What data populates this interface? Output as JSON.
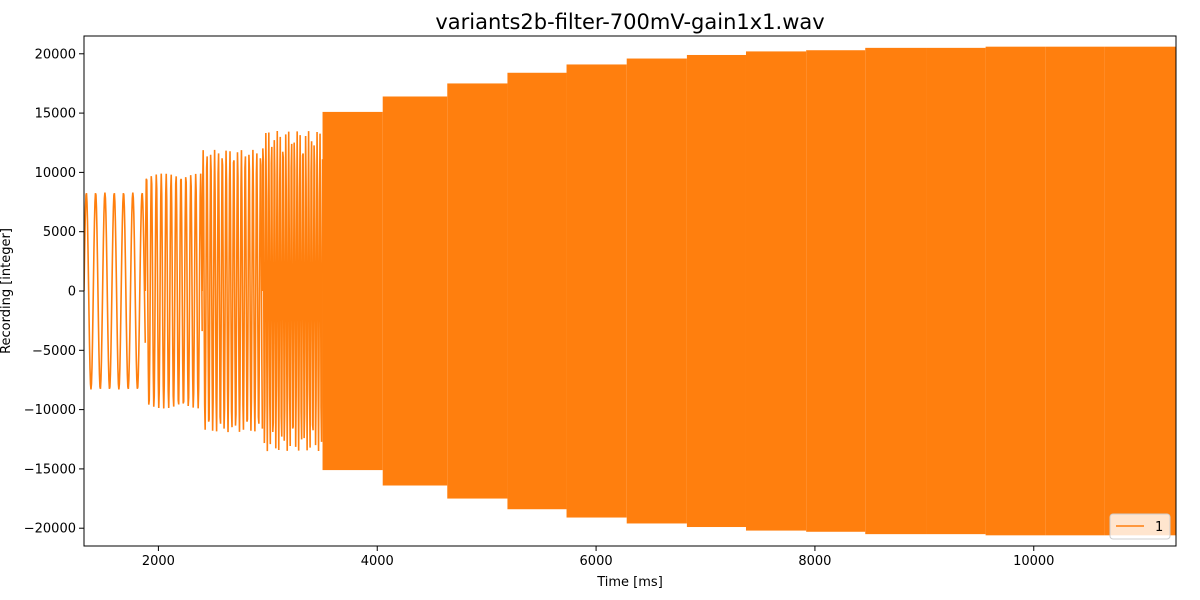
{
  "chart_data": {
    "type": "line",
    "title": "variants2b-filter-700mV-gain1x1.wav",
    "xlabel": "Time [ms]",
    "ylabel": "Recording [integer]",
    "xlim": [
      1320,
      11300
    ],
    "ylim": [
      -21500,
      21500
    ],
    "xticks": [
      2000,
      4000,
      6000,
      8000,
      10000
    ],
    "xtick_labels": [
      "2000",
      "4000",
      "6000",
      "8000",
      "10000"
    ],
    "yticks": [
      -20000,
      -15000,
      -10000,
      -5000,
      0,
      5000,
      10000,
      15000,
      20000
    ],
    "ytick_labels": [
      "−20000",
      "−15000",
      "−10000",
      "−5000",
      "0",
      "5000",
      "10000",
      "15000",
      "20000"
    ],
    "grid": false,
    "legend_position": "lower-right",
    "series": [
      {
        "name": "1",
        "color": "#ff7f0e",
        "signal": "oscillating tone bursts with increasing amplitude and frequency",
        "segments": [
          {
            "start_ms": 1320,
            "end_ms": 1880,
            "amplitude": 8300,
            "period_ms": 85
          },
          {
            "start_ms": 1880,
            "end_ms": 2400,
            "amplitude": 9900,
            "period_ms": 45
          },
          {
            "start_ms": 2400,
            "end_ms": 2950,
            "amplitude": 11900,
            "period_ms": 35
          },
          {
            "start_ms": 2950,
            "end_ms": 3500,
            "amplitude": 13500,
            "period_ms": 26
          },
          {
            "start_ms": 3500,
            "end_ms": 4050,
            "amplitude": 15100,
            "period_ms": 20
          },
          {
            "start_ms": 4050,
            "end_ms": 4640,
            "amplitude": 16400,
            "period_ms": 14
          },
          {
            "start_ms": 4640,
            "end_ms": 5190,
            "amplitude": 17500,
            "period_ms": 9
          },
          {
            "start_ms": 5190,
            "end_ms": 5730,
            "amplitude": 18400,
            "period_ms": 6
          },
          {
            "start_ms": 5730,
            "end_ms": 6280,
            "amplitude": 19100,
            "period_ms": 3
          },
          {
            "start_ms": 6280,
            "end_ms": 6830,
            "amplitude": 19600,
            "period_ms": 3
          },
          {
            "start_ms": 6830,
            "end_ms": 7370,
            "amplitude": 19900,
            "period_ms": 3
          },
          {
            "start_ms": 7370,
            "end_ms": 7920,
            "amplitude": 20200,
            "period_ms": 3
          },
          {
            "start_ms": 7920,
            "end_ms": 8460,
            "amplitude": 20300,
            "period_ms": 3
          },
          {
            "start_ms": 8460,
            "end_ms": 9020,
            "amplitude": 20500,
            "period_ms": 3
          },
          {
            "start_ms": 9020,
            "end_ms": 9560,
            "amplitude": 20500,
            "period_ms": 3
          },
          {
            "start_ms": 9560,
            "end_ms": 10110,
            "amplitude": 20600,
            "period_ms": 3
          },
          {
            "start_ms": 10110,
            "end_ms": 10650,
            "amplitude": 20600,
            "period_ms": 3
          },
          {
            "start_ms": 10650,
            "end_ms": 11300,
            "amplitude": 20600,
            "period_ms": 3
          }
        ]
      }
    ]
  }
}
